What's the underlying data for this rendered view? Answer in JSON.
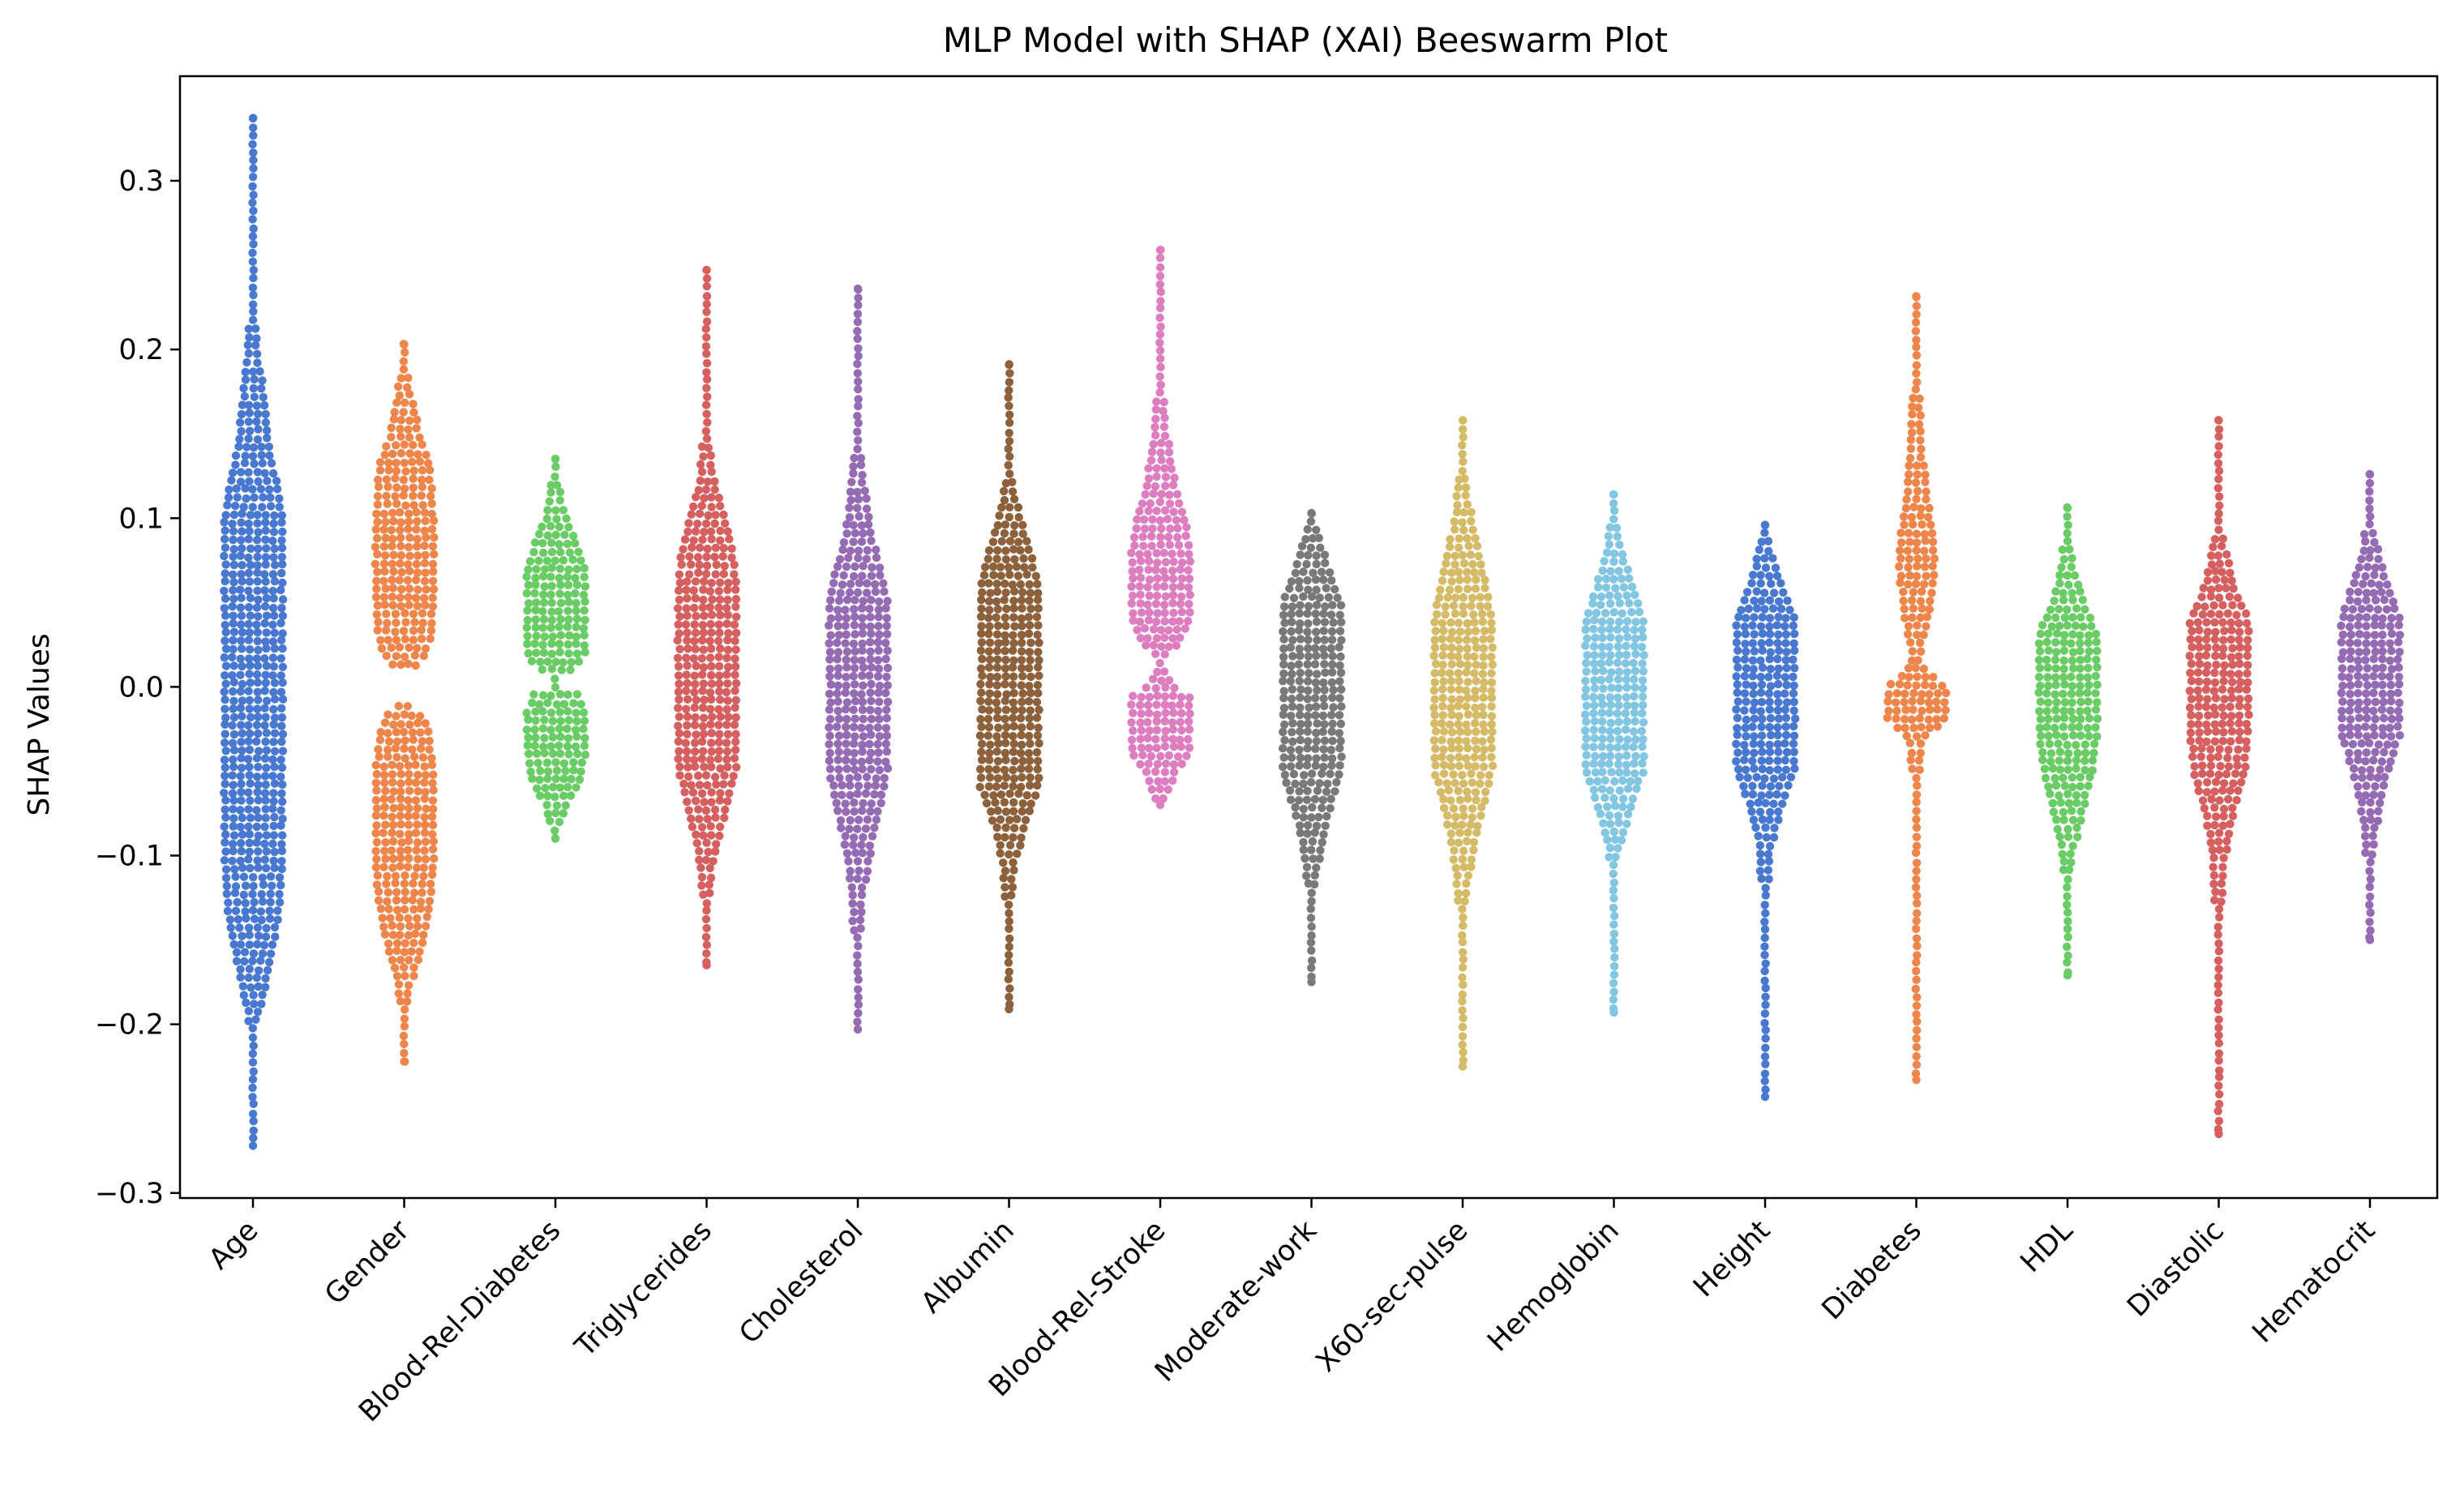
{
  "chart_data": {
    "type": "scatter",
    "subtype": "beeswarm",
    "title": "MLP Model with SHAP (XAI) Beeswarm Plot",
    "xlabel": "",
    "ylabel": "SHAP Values",
    "ylim": [
      -0.303,
      0.362
    ],
    "yticks": [
      -0.3,
      -0.2,
      -0.1,
      0.0,
      0.1,
      0.2,
      0.3
    ],
    "ytick_labels": [
      "−0.3",
      "−0.2",
      "−0.1",
      "0.0",
      "0.1",
      "0.2",
      "0.3"
    ],
    "categories": [
      "Age",
      "Gender",
      "Blood-Rel-Diabetes",
      "Triglycerides",
      "Cholesterol",
      "Albumin",
      "Blood-Rel-Stroke",
      "Moderate-work",
      "X60-sec-pulse",
      "Hemoglobin",
      "Height",
      "Diabetes",
      "HDL",
      "Diastolic",
      "Hematocrit"
    ],
    "grid": false,
    "legend": "none",
    "series": [
      {
        "category": "Age",
        "color": "#4878d0",
        "min": -0.272,
        "max": 0.337,
        "profile": [
          [
            -0.272,
            2
          ],
          [
            -0.25,
            3
          ],
          [
            -0.23,
            4
          ],
          [
            -0.2,
            8
          ],
          [
            -0.18,
            18
          ],
          [
            -0.16,
            26
          ],
          [
            -0.14,
            34
          ],
          [
            -0.12,
            38
          ],
          [
            -0.1,
            40
          ],
          [
            -0.05,
            40
          ],
          [
            0.0,
            40
          ],
          [
            0.05,
            40
          ],
          [
            0.1,
            40
          ],
          [
            0.12,
            34
          ],
          [
            0.14,
            24
          ],
          [
            0.16,
            20
          ],
          [
            0.18,
            16
          ],
          [
            0.2,
            10
          ],
          [
            0.23,
            6
          ],
          [
            0.26,
            4
          ],
          [
            0.3,
            3
          ],
          [
            0.337,
            1
          ]
        ]
      },
      {
        "category": "Gender",
        "color": "#ee854a",
        "min": -0.222,
        "max": 0.203,
        "profile": [
          [
            -0.222,
            2
          ],
          [
            -0.2,
            4
          ],
          [
            -0.18,
            10
          ],
          [
            -0.16,
            22
          ],
          [
            -0.14,
            32
          ],
          [
            -0.12,
            38
          ],
          [
            -0.1,
            40
          ],
          [
            -0.05,
            40
          ],
          [
            -0.025,
            34
          ],
          [
            -0.015,
            22
          ],
          [
            -0.008,
            0
          ],
          [
            0.008,
            0
          ],
          [
            0.015,
            26
          ],
          [
            0.03,
            38
          ],
          [
            0.06,
            40
          ],
          [
            0.1,
            40
          ],
          [
            0.13,
            36
          ],
          [
            0.15,
            22
          ],
          [
            0.17,
            14
          ],
          [
            0.19,
            6
          ],
          [
            0.203,
            2
          ]
        ]
      },
      {
        "category": "Blood-Rel-Diabetes",
        "color": "#6acc64",
        "min": -0.09,
        "max": 0.135,
        "profile": [
          [
            -0.09,
            4
          ],
          [
            -0.07,
            18
          ],
          [
            -0.055,
            34
          ],
          [
            -0.04,
            40
          ],
          [
            -0.015,
            40
          ],
          [
            -0.005,
            32
          ],
          [
            0.0,
            4
          ],
          [
            0.005,
            4
          ],
          [
            0.012,
            30
          ],
          [
            0.02,
            40
          ],
          [
            0.07,
            40
          ],
          [
            0.085,
            30
          ],
          [
            0.1,
            18
          ],
          [
            0.12,
            8
          ],
          [
            0.135,
            2
          ]
        ]
      },
      {
        "category": "Triglycerides",
        "color": "#d65f5f",
        "min": -0.165,
        "max": 0.247,
        "profile": [
          [
            -0.165,
            1
          ],
          [
            -0.13,
            6
          ],
          [
            -0.1,
            14
          ],
          [
            -0.08,
            24
          ],
          [
            -0.06,
            34
          ],
          [
            -0.05,
            40
          ],
          [
            0.0,
            40
          ],
          [
            0.06,
            40
          ],
          [
            0.08,
            36
          ],
          [
            0.1,
            26
          ],
          [
            0.12,
            14
          ],
          [
            0.15,
            6
          ],
          [
            0.2,
            3
          ],
          [
            0.247,
            1
          ]
        ]
      },
      {
        "category": "Cholesterol",
        "color": "#956cb4",
        "min": -0.203,
        "max": 0.236,
        "profile": [
          [
            -0.203,
            1
          ],
          [
            -0.16,
            6
          ],
          [
            -0.12,
            12
          ],
          [
            -0.09,
            22
          ],
          [
            -0.07,
            32
          ],
          [
            -0.05,
            40
          ],
          [
            0.0,
            40
          ],
          [
            0.05,
            40
          ],
          [
            0.07,
            32
          ],
          [
            0.09,
            20
          ],
          [
            0.12,
            12
          ],
          [
            0.15,
            6
          ],
          [
            0.2,
            2
          ],
          [
            0.236,
            1
          ]
        ]
      },
      {
        "category": "Albumin",
        "color": "#8c613c",
        "min": -0.191,
        "max": 0.191,
        "profile": [
          [
            -0.191,
            2
          ],
          [
            -0.15,
            4
          ],
          [
            -0.11,
            10
          ],
          [
            -0.08,
            24
          ],
          [
            -0.06,
            40
          ],
          [
            0.0,
            40
          ],
          [
            0.06,
            40
          ],
          [
            0.08,
            30
          ],
          [
            0.1,
            18
          ],
          [
            0.12,
            8
          ],
          [
            0.15,
            4
          ],
          [
            0.191,
            2
          ]
        ]
      },
      {
        "category": "Blood-Rel-Stroke",
        "color": "#dc7ec0",
        "min": -0.07,
        "max": 0.259,
        "profile": [
          [
            -0.07,
            6
          ],
          [
            -0.05,
            24
          ],
          [
            -0.04,
            40
          ],
          [
            -0.005,
            40
          ],
          [
            0.0,
            20
          ],
          [
            0.015,
            2
          ],
          [
            0.025,
            26
          ],
          [
            0.04,
            40
          ],
          [
            0.08,
            40
          ],
          [
            0.1,
            34
          ],
          [
            0.12,
            22
          ],
          [
            0.15,
            12
          ],
          [
            0.18,
            6
          ],
          [
            0.23,
            2
          ],
          [
            0.259,
            1
          ]
        ]
      },
      {
        "category": "Moderate-work",
        "color": "#797979",
        "min": -0.175,
        "max": 0.103,
        "profile": [
          [
            -0.175,
            1
          ],
          [
            -0.14,
            4
          ],
          [
            -0.11,
            10
          ],
          [
            -0.08,
            22
          ],
          [
            -0.06,
            34
          ],
          [
            -0.05,
            40
          ],
          [
            0.0,
            40
          ],
          [
            0.05,
            40
          ],
          [
            0.06,
            32
          ],
          [
            0.08,
            18
          ],
          [
            0.103,
            4
          ]
        ]
      },
      {
        "category": "X60-sec-pulse",
        "color": "#d5bb67",
        "min": -0.225,
        "max": 0.158,
        "profile": [
          [
            -0.225,
            1
          ],
          [
            -0.15,
            4
          ],
          [
            -0.12,
            10
          ],
          [
            -0.09,
            20
          ],
          [
            -0.06,
            34
          ],
          [
            -0.05,
            40
          ],
          [
            0.0,
            40
          ],
          [
            0.04,
            40
          ],
          [
            0.06,
            32
          ],
          [
            0.08,
            24
          ],
          [
            0.1,
            14
          ],
          [
            0.13,
            6
          ],
          [
            0.158,
            2
          ]
        ]
      },
      {
        "category": "Hemoglobin",
        "color": "#82c6e2",
        "min": -0.193,
        "max": 0.114,
        "profile": [
          [
            -0.193,
            1
          ],
          [
            -0.13,
            3
          ],
          [
            -0.1,
            8
          ],
          [
            -0.08,
            20
          ],
          [
            -0.06,
            32
          ],
          [
            -0.05,
            40
          ],
          [
            0.0,
            40
          ],
          [
            0.04,
            40
          ],
          [
            0.06,
            26
          ],
          [
            0.08,
            14
          ],
          [
            0.1,
            6
          ],
          [
            0.114,
            2
          ]
        ]
      },
      {
        "category": "Height",
        "color": "#4878d0",
        "min": -0.243,
        "max": 0.096,
        "profile": [
          [
            -0.243,
            1
          ],
          [
            -0.15,
            4
          ],
          [
            -0.1,
            10
          ],
          [
            -0.07,
            24
          ],
          [
            -0.05,
            40
          ],
          [
            0.0,
            40
          ],
          [
            0.04,
            40
          ],
          [
            0.06,
            24
          ],
          [
            0.08,
            12
          ],
          [
            0.096,
            4
          ]
        ]
      },
      {
        "category": "Diabetes",
        "color": "#ee854a",
        "min": -0.233,
        "max": 0.231,
        "profile": [
          [
            -0.233,
            1
          ],
          [
            -0.15,
            3
          ],
          [
            -0.06,
            6
          ],
          [
            -0.03,
            14
          ],
          [
            -0.02,
            40
          ],
          [
            0.0,
            40
          ],
          [
            0.004,
            28
          ],
          [
            0.015,
            8
          ],
          [
            0.03,
            14
          ],
          [
            0.05,
            22
          ],
          [
            0.07,
            26
          ],
          [
            0.09,
            24
          ],
          [
            0.11,
            18
          ],
          [
            0.14,
            12
          ],
          [
            0.17,
            8
          ],
          [
            0.2,
            4
          ],
          [
            0.231,
            1
          ]
        ]
      },
      {
        "category": "HDL",
        "color": "#6acc64",
        "min": -0.171,
        "max": 0.106,
        "profile": [
          [
            -0.171,
            1
          ],
          [
            -0.13,
            4
          ],
          [
            -0.1,
            10
          ],
          [
            -0.07,
            24
          ],
          [
            -0.05,
            34
          ],
          [
            -0.03,
            40
          ],
          [
            0.0,
            40
          ],
          [
            0.03,
            40
          ],
          [
            0.05,
            24
          ],
          [
            0.07,
            12
          ],
          [
            0.09,
            6
          ],
          [
            0.106,
            2
          ]
        ]
      },
      {
        "category": "Diastolic",
        "color": "#d65f5f",
        "min": -0.265,
        "max": 0.158,
        "profile": [
          [
            -0.265,
            1
          ],
          [
            -0.2,
            2
          ],
          [
            -0.14,
            6
          ],
          [
            -0.1,
            12
          ],
          [
            -0.07,
            24
          ],
          [
            -0.05,
            36
          ],
          [
            -0.03,
            40
          ],
          [
            0.0,
            40
          ],
          [
            0.04,
            40
          ],
          [
            0.06,
            22
          ],
          [
            0.09,
            8
          ],
          [
            0.12,
            3
          ],
          [
            0.158,
            1
          ]
        ]
      },
      {
        "category": "Hematocrit",
        "color": "#956cb4",
        "min": -0.15,
        "max": 0.126,
        "profile": [
          [
            -0.15,
            1
          ],
          [
            -0.12,
            4
          ],
          [
            -0.09,
            10
          ],
          [
            -0.06,
            20
          ],
          [
            -0.04,
            32
          ],
          [
            -0.03,
            40
          ],
          [
            0.0,
            40
          ],
          [
            0.04,
            40
          ],
          [
            0.06,
            26
          ],
          [
            0.08,
            14
          ],
          [
            0.1,
            6
          ],
          [
            0.126,
            2
          ]
        ]
      }
    ]
  }
}
